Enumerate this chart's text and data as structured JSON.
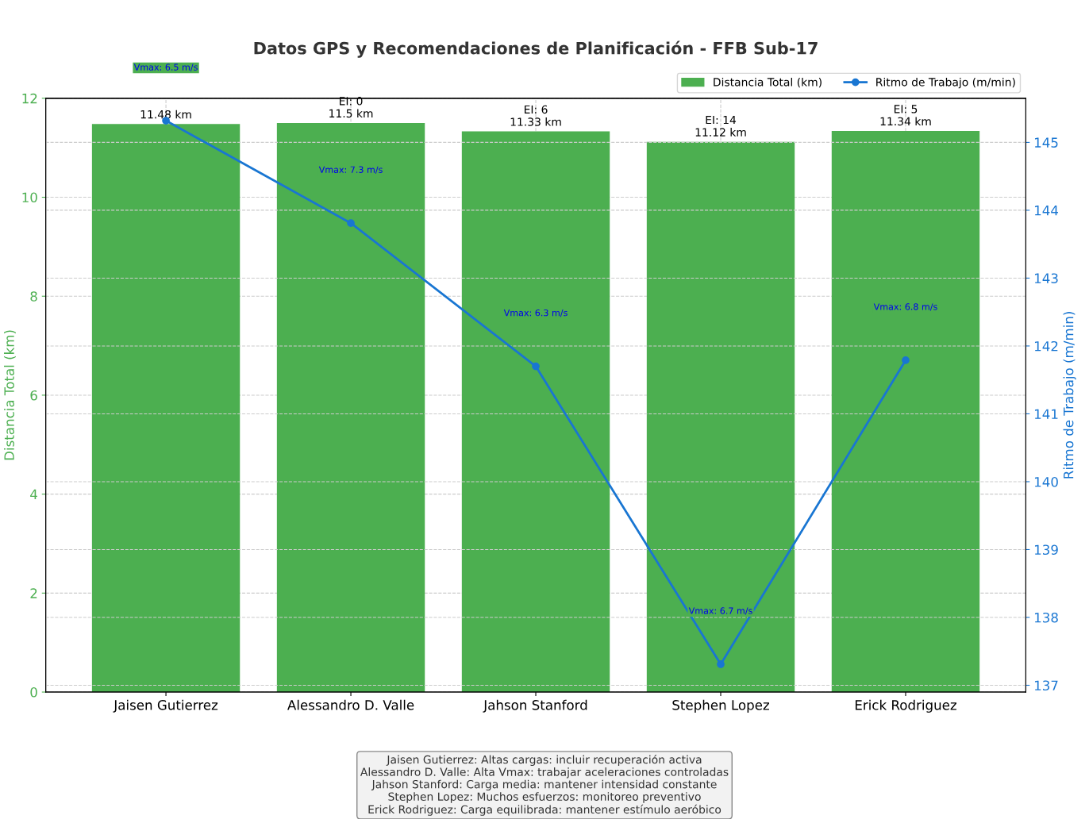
{
  "chart_data": {
    "type": "bar",
    "title": "Datos GPS y Recomendaciones de Planificación - FFB Sub-17",
    "xlabel": null,
    "ylabel": "Distancia Total (km)",
    "y2label": "Ritmo de Trabajo (m/min)",
    "categories": [
      "Jaisen Gutierrez",
      "Alessandro D. Valle",
      "Jahson Stanford",
      "Stephen Lopez",
      "Erick Rodriguez"
    ],
    "series": [
      {
        "name": "Distancia Total (km)",
        "color": "#4caf50",
        "values": [
          11.48,
          11.5,
          11.33,
          11.12,
          11.34
        ],
        "value_labels": [
          "11.48 km",
          "EI: 0\n11.5 km",
          "EI: 6\n11.33 km",
          "EI: 14\n11.12 km",
          "EI: 5\n11.34 km"
        ]
      },
      {
        "name": "Ritmo de Trabajo (m/min)",
        "type": "line",
        "axis": "y2",
        "color": "#1976d2",
        "values": [
          145.32,
          143.81,
          141.7,
          137.31,
          141.79
        ]
      }
    ],
    "ylim": [
      0,
      12
    ],
    "yticks": [
      0,
      2,
      4,
      6,
      8,
      10,
      12
    ],
    "y2lim": [
      136.9,
      145.65
    ],
    "y2ticks": [
      137,
      138,
      139,
      140,
      141,
      142,
      143,
      144,
      145
    ],
    "grid": true,
    "legend": "top right",
    "marker": "circle",
    "line_style": "solid",
    "annotations": [
      "Vmax: 6.5 m/s",
      "Vmax: 7.3 m/s",
      "Vmax: 6.3 m/s",
      "Vmax: 6.7 m/s",
      "Vmax: 6.8 m/s",
      "Jaisen Gutierrez: Altas cargas: incluir recuperación activa",
      "Alessandro D. Valle: Alta Vmax: trabajar aceleraciones controladas",
      "Jahson Stanford: Carga media: mantener intensidad constante",
      "Stephen Lopez: Muchos esfuerzos: monitoreo preventivo",
      "Erick Rodriguez: Carga equilibrada: mantener estímulo aeróbico"
    ]
  }
}
